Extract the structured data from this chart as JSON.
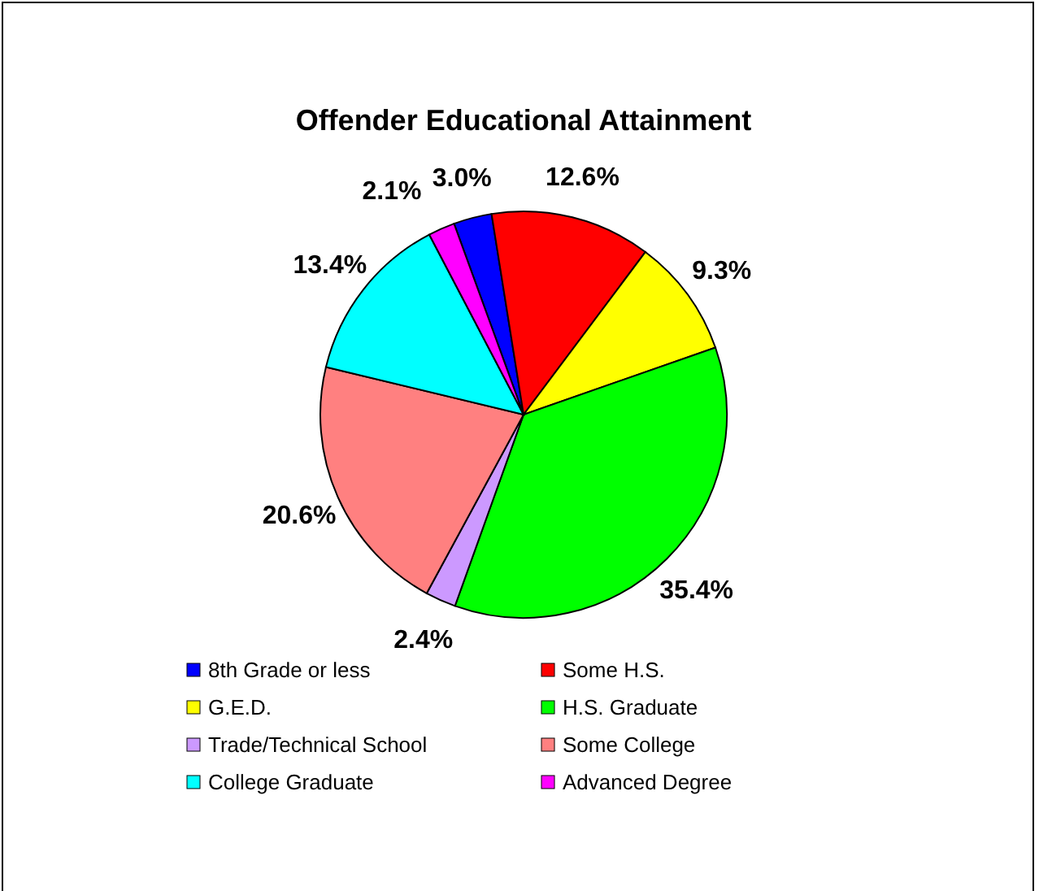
{
  "chart_data": {
    "type": "pie",
    "title": "Offender Educational Attainment",
    "categories": [
      "8th Grade or less",
      "Some H.S.",
      "G.E.D.",
      "H.S. Graduate",
      "Trade/Technical School",
      "Some College",
      "College Graduate",
      "Advanced Degree"
    ],
    "values": [
      3.0,
      12.6,
      9.3,
      35.4,
      2.4,
      20.6,
      13.4,
      2.1
    ],
    "colors": [
      "#0000ff",
      "#ff0000",
      "#ffff00",
      "#00ff00",
      "#cc99ff",
      "#ff8080",
      "#00ffff",
      "#ff00ff"
    ],
    "value_labels": [
      "3.0%",
      "12.6%",
      "9.3%",
      "35.4%",
      "2.4%",
      "20.6%",
      "13.4%",
      "2.1%"
    ],
    "legend": "bottom"
  }
}
